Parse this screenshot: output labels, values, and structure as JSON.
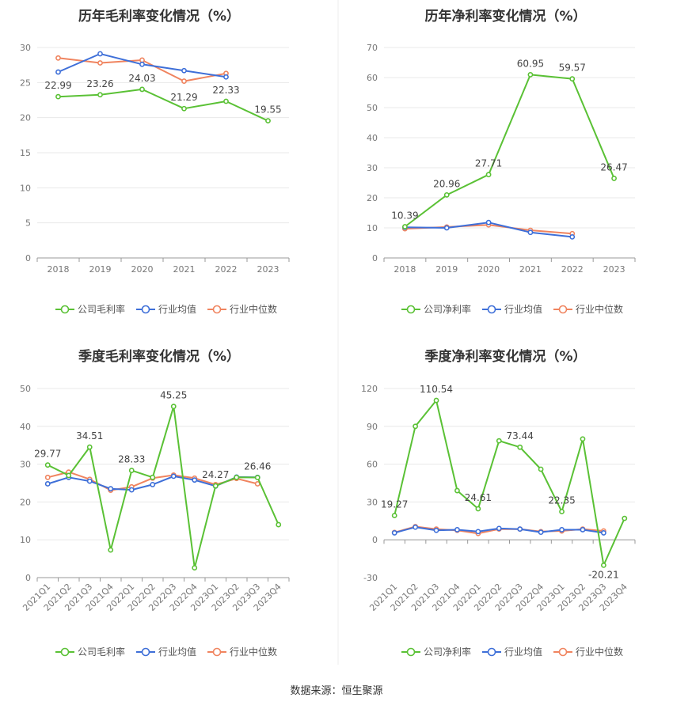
{
  "source": {
    "label": "数据来源：",
    "name": "恒生聚源"
  },
  "colors": {
    "company": "#5ac135",
    "avg": "#3e6fd8",
    "median": "#f0845f",
    "axis": "#999999",
    "grid": "#e8e8e8",
    "tick": "#777777",
    "label": "#444444",
    "title": "#333333"
  },
  "chart_data": [
    {
      "type": "line",
      "title": "历年毛利率变化情况（%）",
      "categories": [
        "2018",
        "2019",
        "2020",
        "2021",
        "2022",
        "2023"
      ],
      "ylim": [
        0,
        30
      ],
      "yticks": [
        0,
        5,
        10,
        15,
        20,
        25,
        30
      ],
      "grid": true,
      "legend_position": "bottom",
      "series": [
        {
          "name": "公司毛利率",
          "values": [
            22.99,
            23.26,
            24.03,
            21.29,
            22.33,
            19.55
          ],
          "labels": [
            "22.99",
            "23.26",
            "24.03",
            "21.29",
            "22.33",
            "19.55"
          ]
        },
        {
          "name": "行业均值",
          "values": [
            26.5,
            29.1,
            27.6,
            26.7,
            25.8,
            null
          ]
        },
        {
          "name": "行业中位数",
          "values": [
            28.5,
            27.8,
            28.2,
            25.2,
            26.3,
            null
          ]
        }
      ]
    },
    {
      "type": "line",
      "title": "历年净利率变化情况（%）",
      "categories": [
        "2018",
        "2019",
        "2020",
        "2021",
        "2022",
        "2023"
      ],
      "ylim": [
        0,
        70
      ],
      "yticks": [
        0,
        10,
        20,
        30,
        40,
        50,
        60,
        70
      ],
      "grid": true,
      "legend_position": "bottom",
      "series": [
        {
          "name": "公司净利率",
          "values": [
            10.39,
            20.96,
            27.71,
            60.95,
            59.57,
            26.47
          ],
          "labels": [
            "10.39",
            "20.96",
            "27.71",
            "60.95",
            "59.57",
            "26.47"
          ]
        },
        {
          "name": "行业均值",
          "values": [
            10.2,
            10.0,
            11.8,
            8.5,
            7.0,
            null
          ]
        },
        {
          "name": "行业中位数",
          "values": [
            9.7,
            10.3,
            11.0,
            9.2,
            8.1,
            null
          ]
        }
      ]
    },
    {
      "type": "line",
      "title": "季度毛利率变化情况（%）",
      "categories": [
        "2021Q1",
        "2021Q2",
        "2021Q3",
        "2021Q4",
        "2022Q1",
        "2022Q2",
        "2022Q3",
        "2022Q4",
        "2023Q1",
        "2023Q2",
        "2023Q3",
        "2023Q4"
      ],
      "ylim": [
        0,
        50
      ],
      "yticks": [
        0,
        10,
        20,
        30,
        40,
        50
      ],
      "grid": true,
      "legend_position": "bottom",
      "series": [
        {
          "name": "公司毛利率",
          "values": [
            29.77,
            27.0,
            34.51,
            7.3,
            28.33,
            26.5,
            45.25,
            2.6,
            24.27,
            26.5,
            26.46,
            14.0
          ],
          "labels": [
            "29.77",
            null,
            "34.51",
            null,
            "28.33",
            null,
            "45.25",
            null,
            "24.27",
            null,
            "26.46",
            null
          ]
        },
        {
          "name": "行业均值",
          "values": [
            24.8,
            26.5,
            25.5,
            23.5,
            23.2,
            24.6,
            26.8,
            25.8,
            24.2,
            26.6,
            26.5,
            null
          ]
        },
        {
          "name": "行业中位数",
          "values": [
            26.5,
            27.9,
            26.0,
            23.1,
            24.0,
            26.3,
            27.1,
            26.3,
            24.6,
            26.2,
            24.8,
            null
          ]
        }
      ]
    },
    {
      "type": "line",
      "title": "季度净利率变化情况（%）",
      "categories": [
        "2021Q1",
        "2021Q2",
        "2021Q3",
        "2021Q4",
        "2022Q1",
        "2022Q2",
        "2022Q3",
        "2022Q4",
        "2023Q1",
        "2023Q2",
        "2023Q3",
        "2023Q4"
      ],
      "ylim": [
        -30,
        120
      ],
      "yticks": [
        -30,
        0,
        30,
        60,
        90,
        120
      ],
      "grid": true,
      "legend_position": "bottom",
      "series": [
        {
          "name": "公司净利率",
          "values": [
            19.27,
            90.0,
            110.54,
            39.0,
            24.61,
            78.5,
            73.44,
            56.0,
            22.35,
            80.0,
            -20.21,
            17.0
          ],
          "labels": [
            "19.27",
            null,
            "110.54",
            null,
            "24.61",
            null,
            "73.44",
            null,
            "22.35",
            null,
            "-20.21",
            null
          ]
        },
        {
          "name": "行业均值",
          "values": [
            5.5,
            10.0,
            7.5,
            8.0,
            6.5,
            9.0,
            8.5,
            6.0,
            8.0,
            8.0,
            5.5,
            null
          ]
        },
        {
          "name": "行业中位数",
          "values": [
            5.8,
            10.5,
            8.5,
            7.5,
            5.0,
            8.5,
            8.5,
            6.5,
            7.0,
            8.5,
            7.0,
            null
          ]
        }
      ]
    }
  ]
}
